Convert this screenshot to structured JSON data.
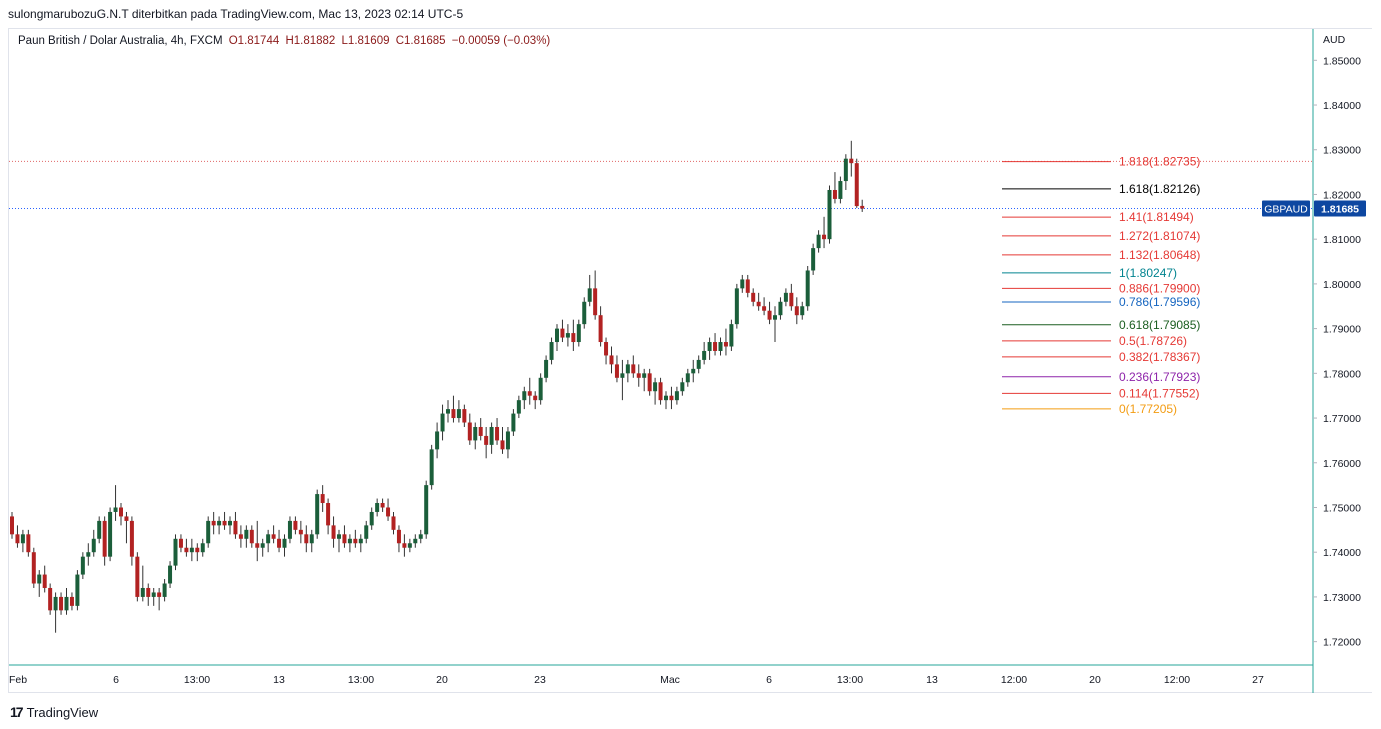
{
  "header": {
    "caption": "sulongmarubozuG.N.T diterbitkan pada TradingView.com, Mac 13, 2023 02:14 UTC-5"
  },
  "legend": {
    "symbol": "Paun British / Dolar Australia, 4h, FXCM",
    "open": "O1.81744",
    "high": "H1.81882",
    "low": "L1.81609",
    "close": "C1.81685",
    "change": "−0.00059 (−0.03%)"
  },
  "currency": "AUD",
  "footer": {
    "brand": "TradingView"
  },
  "colors": {
    "up": "#1b5e3a",
    "down": "#b22222",
    "price_line": "#2962ff",
    "high_line": "#e06666",
    "axis_border": "#26a69a",
    "badge": "#0d47a1"
  },
  "chart_data": {
    "type": "candlestick",
    "symbol": "GBPAUD",
    "last_price": "1.81685",
    "ylim": [
      1.715,
      1.857
    ],
    "y_ticks": [
      "1.85000",
      "1.84000",
      "1.83000",
      "1.82000",
      "1.81000",
      "1.80000",
      "1.79000",
      "1.78000",
      "1.77000",
      "1.76000",
      "1.75000",
      "1.74000",
      "1.73000",
      "1.72000"
    ],
    "x_ticks": [
      "Feb",
      "6",
      "13:00",
      "13",
      "13:00",
      "20",
      "23",
      "Mac",
      "6",
      "13:00",
      "13",
      "12:00",
      "20",
      "12:00",
      "27"
    ],
    "dotted_high_line": 1.8274,
    "fibonacci": [
      {
        "label": "1.818(1.82735)",
        "price": 1.82735,
        "color": "#e53935"
      },
      {
        "label": "1.618(1.82126)",
        "price": 1.82126,
        "color": "#000000"
      },
      {
        "label": "1.41(1.81494)",
        "price": 1.81494,
        "color": "#e53935"
      },
      {
        "label": "1.272(1.81074)",
        "price": 1.81074,
        "color": "#e53935"
      },
      {
        "label": "1.132(1.80648)",
        "price": 1.80648,
        "color": "#e53935"
      },
      {
        "label": "1(1.80247)",
        "price": 1.80247,
        "color": "#00838f"
      },
      {
        "label": "0.886(1.79900)",
        "price": 1.799,
        "color": "#e53935"
      },
      {
        "label": "0.786(1.79596)",
        "price": 1.79596,
        "color": "#1565c0"
      },
      {
        "label": "0.618(1.79085)",
        "price": 1.79085,
        "color": "#1b5e20"
      },
      {
        "label": "0.5(1.78726)",
        "price": 1.78726,
        "color": "#e53935"
      },
      {
        "label": "0.382(1.78367)",
        "price": 1.78367,
        "color": "#e53935"
      },
      {
        "label": "0.236(1.77923)",
        "price": 1.77923,
        "color": "#8e24aa"
      },
      {
        "label": "0.114(1.77552)",
        "price": 1.77552,
        "color": "#e53935"
      },
      {
        "label": "0(1.77205)",
        "price": 1.77205,
        "color": "#f39c12"
      }
    ],
    "ohlc": [
      [
        1.748,
        1.749,
        1.743,
        1.744
      ],
      [
        1.744,
        1.746,
        1.741,
        1.742
      ],
      [
        1.742,
        1.745,
        1.74,
        1.744
      ],
      [
        1.744,
        1.745,
        1.739,
        1.74
      ],
      [
        1.74,
        1.741,
        1.732,
        1.733
      ],
      [
        1.733,
        1.736,
        1.73,
        1.735
      ],
      [
        1.735,
        1.737,
        1.731,
        1.732
      ],
      [
        1.732,
        1.733,
        1.726,
        1.727
      ],
      [
        1.727,
        1.731,
        1.722,
        1.73
      ],
      [
        1.73,
        1.731,
        1.726,
        1.727
      ],
      [
        1.727,
        1.732,
        1.726,
        1.73
      ],
      [
        1.73,
        1.731,
        1.727,
        1.728
      ],
      [
        1.728,
        1.736,
        1.727,
        1.735
      ],
      [
        1.735,
        1.74,
        1.734,
        1.739
      ],
      [
        1.739,
        1.742,
        1.737,
        1.74
      ],
      [
        1.74,
        1.745,
        1.739,
        1.743
      ],
      [
        1.743,
        1.748,
        1.742,
        1.747
      ],
      [
        1.747,
        1.748,
        1.737,
        1.739
      ],
      [
        1.739,
        1.75,
        1.738,
        1.749
      ],
      [
        1.749,
        1.755,
        1.747,
        1.75
      ],
      [
        1.75,
        1.751,
        1.746,
        1.748
      ],
      [
        1.748,
        1.749,
        1.742,
        1.747
      ],
      [
        1.747,
        1.748,
        1.737,
        1.739
      ],
      [
        1.739,
        1.74,
        1.729,
        1.73
      ],
      [
        1.73,
        1.737,
        1.729,
        1.732
      ],
      [
        1.732,
        1.733,
        1.728,
        1.73
      ],
      [
        1.73,
        1.732,
        1.728,
        1.731
      ],
      [
        1.731,
        1.732,
        1.727,
        1.73
      ],
      [
        1.73,
        1.734,
        1.729,
        1.733
      ],
      [
        1.733,
        1.738,
        1.732,
        1.737
      ],
      [
        1.737,
        1.744,
        1.736,
        1.743
      ],
      [
        1.743,
        1.744,
        1.74,
        1.741
      ],
      [
        1.741,
        1.743,
        1.739,
        1.74
      ],
      [
        1.74,
        1.743,
        1.738,
        1.741
      ],
      [
        1.741,
        1.742,
        1.738,
        1.74
      ],
      [
        1.74,
        1.743,
        1.739,
        1.742
      ],
      [
        1.742,
        1.748,
        1.741,
        1.747
      ],
      [
        1.747,
        1.749,
        1.744,
        1.746
      ],
      [
        1.746,
        1.748,
        1.744,
        1.747
      ],
      [
        1.747,
        1.749,
        1.745,
        1.746
      ],
      [
        1.746,
        1.748,
        1.744,
        1.747
      ],
      [
        1.747,
        1.749,
        1.743,
        1.744
      ],
      [
        1.744,
        1.746,
        1.741,
        1.743
      ],
      [
        1.743,
        1.746,
        1.741,
        1.745
      ],
      [
        1.745,
        1.746,
        1.741,
        1.742
      ],
      [
        1.742,
        1.747,
        1.738,
        1.741
      ],
      [
        1.741,
        1.743,
        1.739,
        1.742
      ],
      [
        1.742,
        1.745,
        1.74,
        1.744
      ],
      [
        1.744,
        1.746,
        1.742,
        1.743
      ],
      [
        1.743,
        1.745,
        1.74,
        1.741
      ],
      [
        1.741,
        1.744,
        1.739,
        1.743
      ],
      [
        1.743,
        1.748,
        1.742,
        1.747
      ],
      [
        1.747,
        1.748,
        1.744,
        1.745
      ],
      [
        1.745,
        1.747,
        1.742,
        1.744
      ],
      [
        1.744,
        1.746,
        1.74,
        1.742
      ],
      [
        1.742,
        1.745,
        1.74,
        1.744
      ],
      [
        1.744,
        1.754,
        1.743,
        1.753
      ],
      [
        1.753,
        1.755,
        1.749,
        1.751
      ],
      [
        1.751,
        1.752,
        1.744,
        1.746
      ],
      [
        1.746,
        1.748,
        1.741,
        1.743
      ],
      [
        1.743,
        1.745,
        1.74,
        1.744
      ],
      [
        1.744,
        1.746,
        1.741,
        1.742
      ],
      [
        1.742,
        1.744,
        1.74,
        1.743
      ],
      [
        1.743,
        1.745,
        1.741,
        1.742
      ],
      [
        1.742,
        1.744,
        1.74,
        1.743
      ],
      [
        1.743,
        1.747,
        1.742,
        1.746
      ],
      [
        1.746,
        1.75,
        1.745,
        1.749
      ],
      [
        1.749,
        1.752,
        1.748,
        1.751
      ],
      [
        1.751,
        1.752,
        1.749,
        1.75
      ],
      [
        1.75,
        1.752,
        1.747,
        1.748
      ],
      [
        1.748,
        1.749,
        1.744,
        1.745
      ],
      [
        1.745,
        1.746,
        1.74,
        1.742
      ],
      [
        1.742,
        1.744,
        1.739,
        1.741
      ],
      [
        1.741,
        1.743,
        1.74,
        1.742
      ],
      [
        1.742,
        1.744,
        1.741,
        1.743
      ],
      [
        1.743,
        1.745,
        1.742,
        1.744
      ],
      [
        1.744,
        1.756,
        1.743,
        1.755
      ],
      [
        1.755,
        1.764,
        1.754,
        1.763
      ],
      [
        1.763,
        1.769,
        1.761,
        1.767
      ],
      [
        1.767,
        1.773,
        1.765,
        1.771
      ],
      [
        1.771,
        1.774,
        1.769,
        1.772
      ],
      [
        1.772,
        1.775,
        1.769,
        1.77
      ],
      [
        1.77,
        1.774,
        1.769,
        1.772
      ],
      [
        1.772,
        1.773,
        1.768,
        1.769
      ],
      [
        1.769,
        1.771,
        1.764,
        1.765
      ],
      [
        1.765,
        1.769,
        1.763,
        1.768
      ],
      [
        1.768,
        1.77,
        1.765,
        1.766
      ],
      [
        1.766,
        1.768,
        1.761,
        1.764
      ],
      [
        1.764,
        1.769,
        1.762,
        1.768
      ],
      [
        1.768,
        1.77,
        1.764,
        1.765
      ],
      [
        1.765,
        1.768,
        1.762,
        1.763
      ],
      [
        1.763,
        1.768,
        1.761,
        1.767
      ],
      [
        1.767,
        1.772,
        1.766,
        1.771
      ],
      [
        1.771,
        1.775,
        1.77,
        1.774
      ],
      [
        1.774,
        1.777,
        1.772,
        1.776
      ],
      [
        1.776,
        1.779,
        1.773,
        1.775
      ],
      [
        1.775,
        1.776,
        1.772,
        1.774
      ],
      [
        1.774,
        1.78,
        1.773,
        1.779
      ],
      [
        1.779,
        1.784,
        1.778,
        1.783
      ],
      [
        1.783,
        1.788,
        1.782,
        1.787
      ],
      [
        1.787,
        1.791,
        1.785,
        1.79
      ],
      [
        1.79,
        1.792,
        1.787,
        1.788
      ],
      [
        1.788,
        1.791,
        1.786,
        1.789
      ],
      [
        1.789,
        1.792,
        1.785,
        1.787
      ],
      [
        1.787,
        1.792,
        1.786,
        1.791
      ],
      [
        1.791,
        1.797,
        1.79,
        1.796
      ],
      [
        1.796,
        1.802,
        1.795,
        1.799
      ],
      [
        1.799,
        1.803,
        1.792,
        1.793
      ],
      [
        1.793,
        1.795,
        1.786,
        1.787
      ],
      [
        1.787,
        1.788,
        1.782,
        1.784
      ],
      [
        1.784,
        1.786,
        1.78,
        1.782
      ],
      [
        1.782,
        1.784,
        1.778,
        1.779
      ],
      [
        1.779,
        1.783,
        1.774,
        1.78
      ],
      [
        1.78,
        1.783,
        1.778,
        1.782
      ],
      [
        1.782,
        1.784,
        1.779,
        1.78
      ],
      [
        1.78,
        1.782,
        1.777,
        1.779
      ],
      [
        1.779,
        1.781,
        1.776,
        1.78
      ],
      [
        1.78,
        1.781,
        1.775,
        1.776
      ],
      [
        1.776,
        1.779,
        1.773,
        1.778
      ],
      [
        1.778,
        1.779,
        1.773,
        1.774
      ],
      [
        1.774,
        1.776,
        1.772,
        1.775
      ],
      [
        1.775,
        1.777,
        1.772,
        1.774
      ],
      [
        1.774,
        1.777,
        1.773,
        1.776
      ],
      [
        1.776,
        1.779,
        1.775,
        1.778
      ],
      [
        1.778,
        1.781,
        1.777,
        1.78
      ],
      [
        1.78,
        1.783,
        1.778,
        1.781
      ],
      [
        1.781,
        1.784,
        1.78,
        1.783
      ],
      [
        1.783,
        1.787,
        1.782,
        1.785
      ],
      [
        1.785,
        1.788,
        1.783,
        1.787
      ],
      [
        1.787,
        1.789,
        1.784,
        1.785
      ],
      [
        1.785,
        1.788,
        1.784,
        1.787
      ],
      [
        1.787,
        1.79,
        1.784,
        1.786
      ],
      [
        1.786,
        1.792,
        1.785,
        1.791
      ],
      [
        1.791,
        1.8,
        1.79,
        1.799
      ],
      [
        1.799,
        1.802,
        1.798,
        1.801
      ],
      [
        1.801,
        1.802,
        1.797,
        1.798
      ],
      [
        1.798,
        1.799,
        1.795,
        1.796
      ],
      [
        1.796,
        1.798,
        1.794,
        1.795
      ],
      [
        1.795,
        1.797,
        1.793,
        1.794
      ],
      [
        1.794,
        1.796,
        1.791,
        1.792
      ],
      [
        1.792,
        1.795,
        1.787,
        1.793
      ],
      [
        1.793,
        1.797,
        1.792,
        1.796
      ],
      [
        1.796,
        1.799,
        1.795,
        1.798
      ],
      [
        1.798,
        1.8,
        1.794,
        1.795
      ],
      [
        1.795,
        1.797,
        1.791,
        1.793
      ],
      [
        1.793,
        1.796,
        1.792,
        1.795
      ],
      [
        1.795,
        1.804,
        1.794,
        1.803
      ],
      [
        1.803,
        1.809,
        1.802,
        1.808
      ],
      [
        1.808,
        1.812,
        1.807,
        1.811
      ],
      [
        1.811,
        1.815,
        1.808,
        1.81
      ],
      [
        1.81,
        1.822,
        1.809,
        1.821
      ],
      [
        1.821,
        1.825,
        1.818,
        1.819
      ],
      [
        1.819,
        1.824,
        1.818,
        1.823
      ],
      [
        1.823,
        1.829,
        1.821,
        1.828
      ],
      [
        1.828,
        1.832,
        1.824,
        1.827
      ],
      [
        1.827,
        1.828,
        1.817,
        1.8174
      ],
      [
        1.81744,
        1.81882,
        1.81609,
        1.81685
      ]
    ]
  }
}
